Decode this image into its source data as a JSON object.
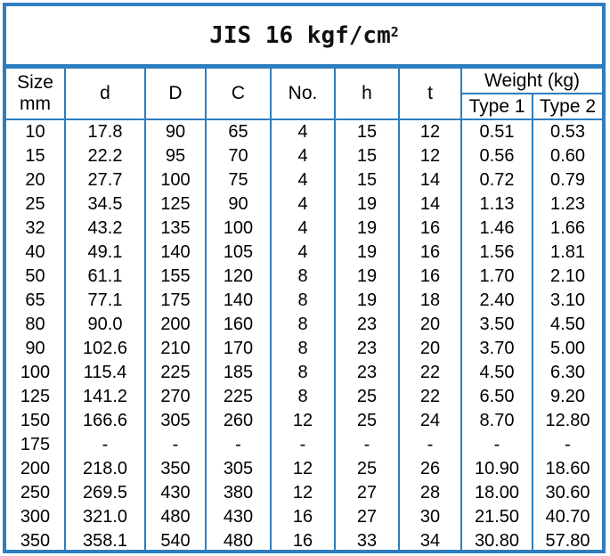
{
  "title": {
    "text": "JIS 16 kgf/cm",
    "superscript": "2"
  },
  "header": {
    "size_line1": "Size",
    "size_line2": "mm",
    "d": "d",
    "D": "D",
    "C": "C",
    "no": "No.",
    "h": "h",
    "t": "t",
    "weight": "Weight (kg)",
    "type1": "Type 1",
    "type2": "Type 2"
  },
  "rows": [
    [
      "10",
      "17.8",
      "90",
      "65",
      "4",
      "15",
      "12",
      "0.51",
      "0.53"
    ],
    [
      "15",
      "22.2",
      "95",
      "70",
      "4",
      "15",
      "12",
      "0.56",
      "0.60"
    ],
    [
      "20",
      "27.7",
      "100",
      "75",
      "4",
      "15",
      "14",
      "0.72",
      "0.79"
    ],
    [
      "25",
      "34.5",
      "125",
      "90",
      "4",
      "19",
      "14",
      "1.13",
      "1.23"
    ],
    [
      "32",
      "43.2",
      "135",
      "100",
      "4",
      "19",
      "16",
      "1.46",
      "1.66"
    ],
    [
      "40",
      "49.1",
      "140",
      "105",
      "4",
      "19",
      "16",
      "1.56",
      "1.81"
    ],
    [
      "50",
      "61.1",
      "155",
      "120",
      "8",
      "19",
      "16",
      "1.70",
      "2.10"
    ],
    [
      "65",
      "77.1",
      "175",
      "140",
      "8",
      "19",
      "18",
      "2.40",
      "3.10"
    ],
    [
      "80",
      "90.0",
      "200",
      "160",
      "8",
      "23",
      "20",
      "3.50",
      "4.50"
    ],
    [
      "90",
      "102.6",
      "210",
      "170",
      "8",
      "23",
      "20",
      "3.70",
      "5.00"
    ],
    [
      "100",
      "115.4",
      "225",
      "185",
      "8",
      "23",
      "22",
      "4.50",
      "6.30"
    ],
    [
      "125",
      "141.2",
      "270",
      "225",
      "8",
      "25",
      "22",
      "6.50",
      "9.20"
    ],
    [
      "150",
      "166.6",
      "305",
      "260",
      "12",
      "25",
      "24",
      "8.70",
      "12.80"
    ],
    [
      "175",
      "-",
      "-",
      "-",
      "-",
      "-",
      "-",
      "-",
      "-"
    ],
    [
      "200",
      "218.0",
      "350",
      "305",
      "12",
      "25",
      "26",
      "10.90",
      "18.60"
    ],
    [
      "250",
      "269.5",
      "430",
      "380",
      "12",
      "27",
      "28",
      "18.00",
      "30.60"
    ],
    [
      "300",
      "321.0",
      "480",
      "430",
      "16",
      "27",
      "30",
      "21.50",
      "40.70"
    ],
    [
      "350",
      "358.1",
      "540",
      "480",
      "16",
      "33",
      "34",
      "30.80",
      "57.80"
    ]
  ],
  "colors": {
    "border": "#2e7dbf",
    "text": "#000000"
  }
}
